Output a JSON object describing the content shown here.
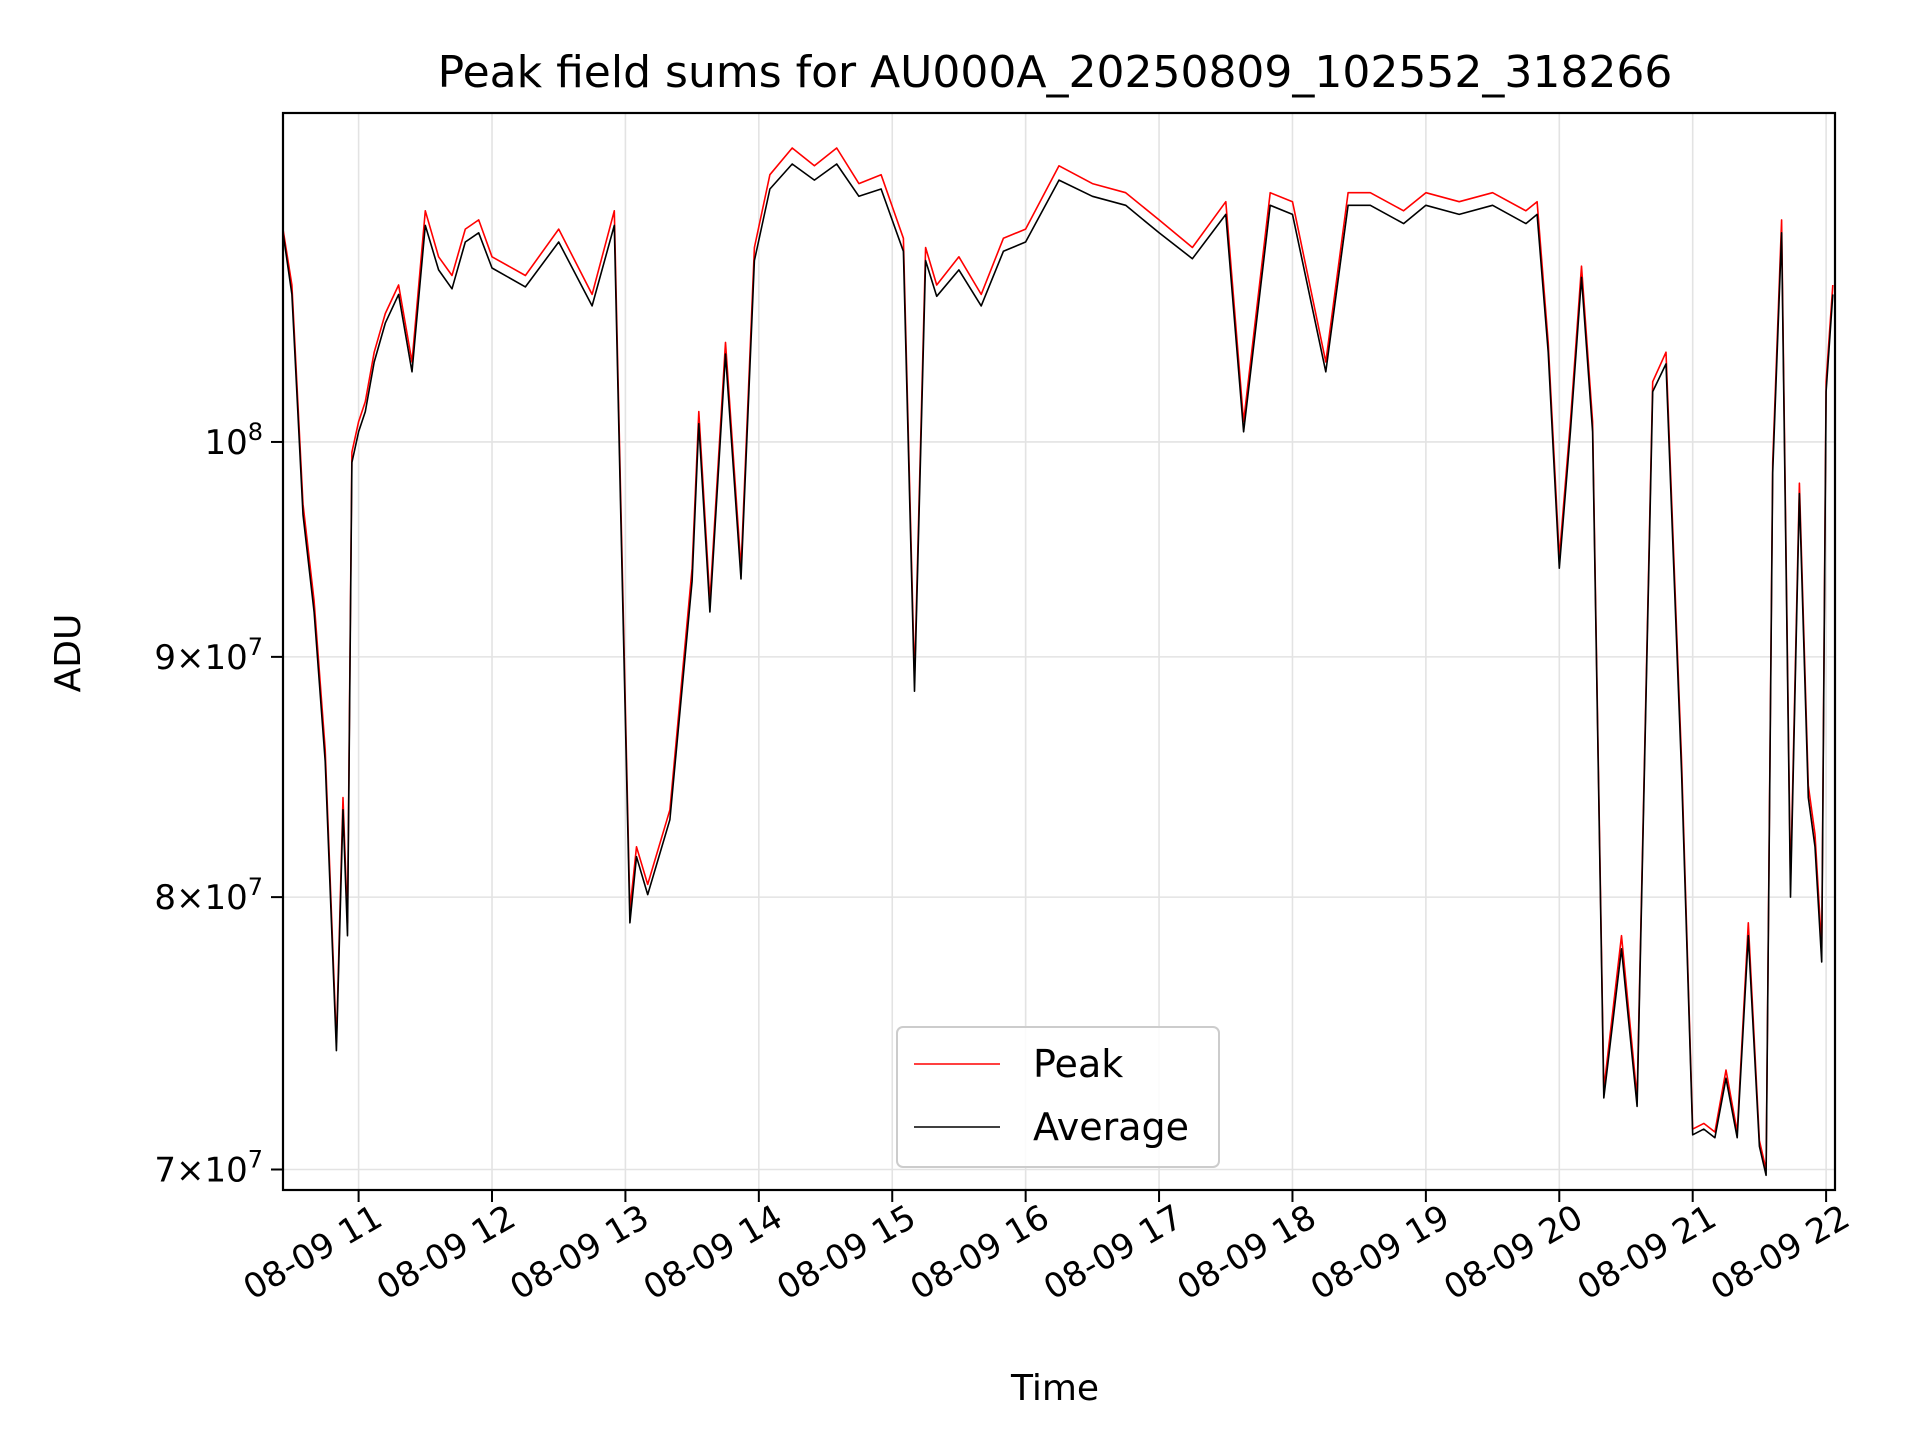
{
  "chart_data": {
    "type": "line",
    "title": "Peak field sums for AU000A_20250809_102552_318266",
    "xlabel": "Time",
    "ylabel": "ADU",
    "y_scale": "log",
    "ylim": [
      69300000,
      117500000
    ],
    "xlim": [
      "2025-08-09 10:26",
      "2025-08-09 22:04"
    ],
    "grid": true,
    "legend_position": "lower center",
    "x_ticks": [
      {
        "value": "2025-08-09 11:00",
        "label": "08-09 11"
      },
      {
        "value": "2025-08-09 12:00",
        "label": "08-09 12"
      },
      {
        "value": "2025-08-09 13:00",
        "label": "08-09 13"
      },
      {
        "value": "2025-08-09 14:00",
        "label": "08-09 14"
      },
      {
        "value": "2025-08-09 15:00",
        "label": "08-09 15"
      },
      {
        "value": "2025-08-09 16:00",
        "label": "08-09 16"
      },
      {
        "value": "2025-08-09 17:00",
        "label": "08-09 17"
      },
      {
        "value": "2025-08-09 18:00",
        "label": "08-09 18"
      },
      {
        "value": "2025-08-09 19:00",
        "label": "08-09 19"
      },
      {
        "value": "2025-08-09 20:00",
        "label": "08-09 20"
      },
      {
        "value": "2025-08-09 21:00",
        "label": "08-09 21"
      },
      {
        "value": "2025-08-09 22:00",
        "label": "08-09 22"
      }
    ],
    "y_ticks": [
      {
        "value": 70000000,
        "mantissa": "7×",
        "base": "10",
        "exp": "7"
      },
      {
        "value": 80000000,
        "mantissa": "8×",
        "base": "10",
        "exp": "7"
      },
      {
        "value": 90000000,
        "mantissa": "9×",
        "base": "10",
        "exp": "7"
      },
      {
        "value": 100000000,
        "mantissa": "",
        "base": "10",
        "exp": "8"
      }
    ],
    "series": [
      {
        "name": "Peak",
        "color": "#ff0000",
        "x": [
          "2025-08-09 10:26",
          "2025-08-09 10:30",
          "2025-08-09 10:35",
          "2025-08-09 10:40",
          "2025-08-09 10:45",
          "2025-08-09 10:50",
          "2025-08-09 10:53",
          "2025-08-09 10:55",
          "2025-08-09 10:57",
          "2025-08-09 11:00",
          "2025-08-09 11:03",
          "2025-08-09 11:07",
          "2025-08-09 11:12",
          "2025-08-09 11:18",
          "2025-08-09 11:24",
          "2025-08-09 11:30",
          "2025-08-09 11:36",
          "2025-08-09 11:42",
          "2025-08-09 11:48",
          "2025-08-09 11:54",
          "2025-08-09 12:00",
          "2025-08-09 12:15",
          "2025-08-09 12:30",
          "2025-08-09 12:45",
          "2025-08-09 12:55",
          "2025-08-09 13:02",
          "2025-08-09 13:05",
          "2025-08-09 13:10",
          "2025-08-09 13:20",
          "2025-08-09 13:30",
          "2025-08-09 13:33",
          "2025-08-09 13:38",
          "2025-08-09 13:45",
          "2025-08-09 13:52",
          "2025-08-09 13:58",
          "2025-08-09 14:05",
          "2025-08-09 14:15",
          "2025-08-09 14:25",
          "2025-08-09 14:35",
          "2025-08-09 14:45",
          "2025-08-09 14:55",
          "2025-08-09 15:05",
          "2025-08-09 15:10",
          "2025-08-09 15:15",
          "2025-08-09 15:20",
          "2025-08-09 15:30",
          "2025-08-09 15:40",
          "2025-08-09 15:50",
          "2025-08-09 16:00",
          "2025-08-09 16:15",
          "2025-08-09 16:30",
          "2025-08-09 16:45",
          "2025-08-09 17:00",
          "2025-08-09 17:15",
          "2025-08-09 17:30",
          "2025-08-09 17:38",
          "2025-08-09 17:50",
          "2025-08-09 18:00",
          "2025-08-09 18:15",
          "2025-08-09 18:25",
          "2025-08-09 18:35",
          "2025-08-09 18:50",
          "2025-08-09 19:00",
          "2025-08-09 19:15",
          "2025-08-09 19:30",
          "2025-08-09 19:45",
          "2025-08-09 19:50",
          "2025-08-09 19:55",
          "2025-08-09 20:00",
          "2025-08-09 20:05",
          "2025-08-09 20:10",
          "2025-08-09 20:15",
          "2025-08-09 20:20",
          "2025-08-09 20:28",
          "2025-08-09 20:35",
          "2025-08-09 20:42",
          "2025-08-09 20:48",
          "2025-08-09 20:55",
          "2025-08-09 21:00",
          "2025-08-09 21:05",
          "2025-08-09 21:10",
          "2025-08-09 21:15",
          "2025-08-09 21:20",
          "2025-08-09 21:25",
          "2025-08-09 21:30",
          "2025-08-09 21:33",
          "2025-08-09 21:36",
          "2025-08-09 21:40",
          "2025-08-09 21:44",
          "2025-08-09 21:48",
          "2025-08-09 21:52",
          "2025-08-09 21:55",
          "2025-08-09 21:58",
          "2025-08-09 22:00",
          "2025-08-09 22:03"
        ],
        "values": [
          111000000,
          108000000,
          97000000,
          92500000,
          86000000,
          74500000,
          84000000,
          79000000,
          99500000,
          101000000,
          102000000,
          104500000,
          106500000,
          108000000,
          104000000,
          112000000,
          109500000,
          108500000,
          111000000,
          111500000,
          109500000,
          108500000,
          111000000,
          107500000,
          112000000,
          79500000,
          82000000,
          80500000,
          83500000,
          94000000,
          101500000,
          92500000,
          105000000,
          94000000,
          110000000,
          114000000,
          115500000,
          114500000,
          115500000,
          113500000,
          114000000,
          110500000,
          89000000,
          110000000,
          108000000,
          109500000,
          107500000,
          110500000,
          111000000,
          114500000,
          113500000,
          113000000,
          111500000,
          110000000,
          112500000,
          101000000,
          113000000,
          112500000,
          104000000,
          113000000,
          113000000,
          112000000,
          113000000,
          112500000,
          113000000,
          112000000,
          112500000,
          105000000,
          94500000,
          101000000,
          109000000,
          101000000,
          72800000,
          78500000,
          72500000,
          103000000,
          104500000,
          85500000,
          71400000,
          71600000,
          71300000,
          73500000,
          71300000,
          79000000,
          71000000,
          70000000,
          99000000,
          111500000,
          80500000,
          98000000,
          84500000,
          82500000,
          78000000,
          103000000,
          108000000
        ]
      },
      {
        "name": "Average",
        "color": "#000000",
        "x": [
          "2025-08-09 10:26",
          "2025-08-09 10:30",
          "2025-08-09 10:35",
          "2025-08-09 10:40",
          "2025-08-09 10:45",
          "2025-08-09 10:50",
          "2025-08-09 10:53",
          "2025-08-09 10:55",
          "2025-08-09 10:57",
          "2025-08-09 11:00",
          "2025-08-09 11:03",
          "2025-08-09 11:07",
          "2025-08-09 11:12",
          "2025-08-09 11:18",
          "2025-08-09 11:24",
          "2025-08-09 11:30",
          "2025-08-09 11:36",
          "2025-08-09 11:42",
          "2025-08-09 11:48",
          "2025-08-09 11:54",
          "2025-08-09 12:00",
          "2025-08-09 12:15",
          "2025-08-09 12:30",
          "2025-08-09 12:45",
          "2025-08-09 12:55",
          "2025-08-09 13:02",
          "2025-08-09 13:05",
          "2025-08-09 13:10",
          "2025-08-09 13:20",
          "2025-08-09 13:30",
          "2025-08-09 13:33",
          "2025-08-09 13:38",
          "2025-08-09 13:45",
          "2025-08-09 13:52",
          "2025-08-09 13:58",
          "2025-08-09 14:05",
          "2025-08-09 14:15",
          "2025-08-09 14:25",
          "2025-08-09 14:35",
          "2025-08-09 14:45",
          "2025-08-09 14:55",
          "2025-08-09 15:05",
          "2025-08-09 15:10",
          "2025-08-09 15:15",
          "2025-08-09 15:20",
          "2025-08-09 15:30",
          "2025-08-09 15:40",
          "2025-08-09 15:50",
          "2025-08-09 16:00",
          "2025-08-09 16:15",
          "2025-08-09 16:30",
          "2025-08-09 16:45",
          "2025-08-09 17:00",
          "2025-08-09 17:15",
          "2025-08-09 17:30",
          "2025-08-09 17:38",
          "2025-08-09 17:50",
          "2025-08-09 18:00",
          "2025-08-09 18:15",
          "2025-08-09 18:25",
          "2025-08-09 18:35",
          "2025-08-09 18:50",
          "2025-08-09 19:00",
          "2025-08-09 19:15",
          "2025-08-09 19:30",
          "2025-08-09 19:45",
          "2025-08-09 19:50",
          "2025-08-09 19:55",
          "2025-08-09 20:00",
          "2025-08-09 20:05",
          "2025-08-09 20:10",
          "2025-08-09 20:15",
          "2025-08-09 20:20",
          "2025-08-09 20:28",
          "2025-08-09 20:35",
          "2025-08-09 20:42",
          "2025-08-09 20:48",
          "2025-08-09 20:55",
          "2025-08-09 21:00",
          "2025-08-09 21:05",
          "2025-08-09 21:10",
          "2025-08-09 21:15",
          "2025-08-09 21:20",
          "2025-08-09 21:25",
          "2025-08-09 21:30",
          "2025-08-09 21:33",
          "2025-08-09 21:36",
          "2025-08-09 21:40",
          "2025-08-09 21:44",
          "2025-08-09 21:48",
          "2025-08-09 21:52",
          "2025-08-09 21:55",
          "2025-08-09 21:58",
          "2025-08-09 22:00",
          "2025-08-09 22:03"
        ],
        "values": [
          110800000,
          107500000,
          96500000,
          92000000,
          85500000,
          74200000,
          83500000,
          78500000,
          99000000,
          100500000,
          101500000,
          104000000,
          106000000,
          107500000,
          103500000,
          111200000,
          108800000,
          107800000,
          110300000,
          110800000,
          108900000,
          107900000,
          110300000,
          106900000,
          111200000,
          79000000,
          81600000,
          80100000,
          83100000,
          93400000,
          100900000,
          92000000,
          104400000,
          93500000,
          109300000,
          113200000,
          114600000,
          113700000,
          114600000,
          112800000,
          113200000,
          109800000,
          88500000,
          109300000,
          107400000,
          108800000,
          106900000,
          109800000,
          110300000,
          113700000,
          112800000,
          112300000,
          110800000,
          109400000,
          111800000,
          100500000,
          112300000,
          111800000,
          103500000,
          112300000,
          112300000,
          111300000,
          112300000,
          111800000,
          112300000,
          111300000,
          111800000,
          104500000,
          94000000,
          100500000,
          108400000,
          100500000,
          72500000,
          78000000,
          72200000,
          102500000,
          103900000,
          85000000,
          71200000,
          71400000,
          71100000,
          73200000,
          71100000,
          78500000,
          70800000,
          69800000,
          98500000,
          110800000,
          80000000,
          97500000,
          84000000,
          82000000,
          77500000,
          102500000,
          107500000
        ]
      }
    ]
  }
}
